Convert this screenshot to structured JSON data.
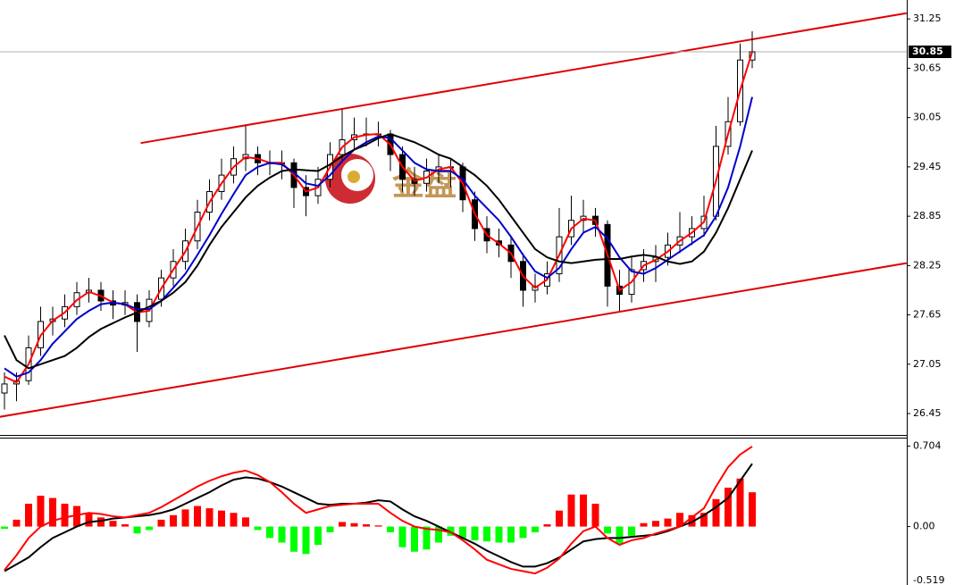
{
  "chart_data": {
    "type": "candlestick",
    "watermark": "金盘",
    "ylim": [
      26.19,
      31.48
    ],
    "yticks": [
      31.25,
      30.65,
      30.05,
      29.45,
      28.85,
      28.25,
      27.65,
      27.05,
      26.45
    ],
    "last_price": 30.85,
    "candles": [
      [
        26.7,
        26.95,
        26.5,
        26.81
      ],
      [
        26.81,
        26.95,
        26.6,
        26.85
      ],
      [
        26.85,
        27.4,
        26.8,
        27.25
      ],
      [
        27.25,
        27.75,
        27.15,
        27.57
      ],
      [
        27.57,
        27.75,
        27.4,
        27.6
      ],
      [
        27.6,
        27.9,
        27.5,
        27.75
      ],
      [
        27.75,
        28.05,
        27.65,
        27.92
      ],
      [
        27.92,
        28.1,
        27.8,
        27.95
      ],
      [
        27.95,
        28.05,
        27.7,
        27.82
      ],
      [
        27.82,
        27.95,
        27.6,
        27.77
      ],
      [
        27.77,
        27.95,
        27.65,
        27.8
      ],
      [
        27.8,
        27.9,
        27.2,
        27.57
      ],
      [
        27.57,
        27.95,
        27.5,
        27.84
      ],
      [
        27.84,
        28.2,
        27.75,
        28.1
      ],
      [
        28.1,
        28.45,
        28.0,
        28.3
      ],
      [
        28.3,
        28.7,
        28.2,
        28.55
      ],
      [
        28.55,
        29.05,
        28.45,
        28.9
      ],
      [
        28.9,
        29.3,
        28.8,
        29.15
      ],
      [
        29.15,
        29.55,
        29.05,
        29.35
      ],
      [
        29.35,
        29.7,
        29.25,
        29.55
      ],
      [
        29.55,
        29.95,
        29.4,
        29.6
      ],
      [
        29.6,
        29.7,
        29.35,
        29.5
      ],
      [
        29.5,
        29.65,
        29.35,
        29.5
      ],
      [
        29.5,
        29.65,
        29.3,
        29.5
      ],
      [
        29.5,
        29.55,
        28.95,
        29.2
      ],
      [
        29.2,
        29.35,
        28.85,
        29.1
      ],
      [
        29.1,
        29.45,
        29.0,
        29.3
      ],
      [
        29.3,
        29.75,
        29.2,
        29.6
      ],
      [
        29.6,
        30.15,
        29.5,
        29.78
      ],
      [
        29.78,
        30.05,
        29.65,
        29.84
      ],
      [
        29.84,
        30.05,
        29.7,
        29.85
      ],
      [
        29.85,
        30.0,
        29.7,
        29.85
      ],
      [
        29.85,
        29.9,
        29.4,
        29.6
      ],
      [
        29.6,
        29.7,
        29.15,
        29.3
      ],
      [
        29.3,
        29.45,
        29.1,
        29.25
      ],
      [
        29.25,
        29.55,
        29.15,
        29.4
      ],
      [
        29.4,
        29.6,
        29.25,
        29.45
      ],
      [
        29.45,
        29.55,
        29.2,
        29.45
      ],
      [
        29.45,
        29.5,
        28.9,
        29.05
      ],
      [
        29.05,
        29.15,
        28.55,
        28.7
      ],
      [
        28.7,
        28.85,
        28.4,
        28.55
      ],
      [
        28.55,
        28.7,
        28.35,
        28.5
      ],
      [
        28.5,
        28.6,
        28.1,
        28.3
      ],
      [
        28.3,
        28.4,
        27.75,
        27.95
      ],
      [
        27.95,
        28.15,
        27.8,
        28.0
      ],
      [
        28.0,
        28.3,
        27.9,
        28.15
      ],
      [
        28.15,
        28.95,
        28.05,
        28.6
      ],
      [
        28.6,
        29.1,
        28.5,
        28.8
      ],
      [
        28.8,
        29.05,
        28.65,
        28.85
      ],
      [
        28.85,
        28.95,
        28.6,
        28.75
      ],
      [
        28.75,
        28.8,
        27.75,
        28.0
      ],
      [
        28.0,
        28.2,
        27.7,
        27.9
      ],
      [
        27.9,
        28.35,
        27.8,
        28.2
      ],
      [
        28.2,
        28.45,
        28.05,
        28.3
      ],
      [
        28.3,
        28.5,
        28.05,
        28.35
      ],
      [
        28.35,
        28.65,
        28.25,
        28.5
      ],
      [
        28.5,
        28.9,
        28.4,
        28.6
      ],
      [
        28.6,
        28.85,
        28.5,
        28.7
      ],
      [
        28.7,
        29.1,
        28.6,
        28.85
      ],
      [
        28.85,
        29.95,
        28.8,
        29.7
      ],
      [
        29.7,
        30.3,
        29.6,
        30.0
      ],
      [
        30.0,
        30.95,
        29.95,
        30.75
      ],
      [
        30.75,
        31.1,
        30.65,
        30.85
      ]
    ],
    "moving_averages": [
      {
        "color": "#ff0000",
        "values": [
          26.9,
          26.83,
          27.05,
          27.4,
          27.58,
          27.68,
          27.83,
          27.93,
          27.88,
          27.8,
          27.78,
          27.68,
          27.7,
          27.97,
          28.2,
          28.42,
          28.72,
          29.02,
          29.25,
          29.45,
          29.57,
          29.55,
          29.5,
          29.5,
          29.35,
          29.15,
          29.2,
          29.45,
          29.69,
          29.81,
          29.84,
          29.85,
          29.72,
          29.45,
          29.28,
          29.32,
          29.42,
          29.45,
          29.25,
          28.88,
          28.62,
          28.52,
          28.4,
          28.12,
          27.98,
          28.08,
          28.38,
          28.7,
          28.82,
          28.8,
          28.38,
          27.95,
          28.05,
          28.25,
          28.32,
          28.42,
          28.55,
          28.65,
          28.78,
          29.28,
          29.85,
          30.38,
          30.85
        ]
      },
      {
        "color": "#0000cc",
        "values": [
          27.0,
          26.9,
          26.95,
          27.1,
          27.3,
          27.45,
          27.6,
          27.7,
          27.78,
          27.8,
          27.78,
          27.72,
          27.72,
          27.82,
          27.98,
          28.15,
          28.38,
          28.62,
          28.88,
          29.12,
          29.35,
          29.45,
          29.5,
          29.48,
          29.38,
          29.25,
          29.22,
          29.35,
          29.52,
          29.66,
          29.75,
          29.82,
          29.8,
          29.65,
          29.5,
          29.42,
          29.4,
          29.4,
          29.3,
          29.1,
          28.95,
          28.8,
          28.6,
          28.38,
          28.18,
          28.1,
          28.22,
          28.45,
          28.65,
          28.72,
          28.58,
          28.35,
          28.18,
          28.15,
          28.22,
          28.32,
          28.42,
          28.52,
          28.62,
          28.85,
          29.2,
          29.7,
          30.3
        ]
      },
      {
        "color": "#000000",
        "values": [
          27.4,
          27.1,
          27.0,
          27.05,
          27.1,
          27.15,
          27.25,
          27.38,
          27.48,
          27.55,
          27.62,
          27.68,
          27.75,
          27.82,
          27.92,
          28.05,
          28.25,
          28.5,
          28.72,
          28.9,
          29.08,
          29.22,
          29.32,
          29.4,
          29.42,
          29.41,
          29.4,
          29.48,
          29.58,
          29.66,
          29.72,
          29.8,
          29.85,
          29.8,
          29.75,
          29.68,
          29.6,
          29.55,
          29.45,
          29.35,
          29.22,
          29.05,
          28.85,
          28.65,
          28.45,
          28.35,
          28.3,
          28.28,
          28.3,
          28.32,
          28.33,
          28.33,
          28.36,
          28.38,
          28.36,
          28.3,
          28.27,
          28.3,
          28.42,
          28.65,
          28.95,
          29.3,
          29.65
        ]
      }
    ],
    "trendlines": [
      {
        "color": "#e00000",
        "x": [
          11.3,
          74.8
        ],
        "values": [
          29.74,
          31.32
        ]
      },
      {
        "color": "#e00000",
        "x": [
          -0.4,
          74.8
        ],
        "values": [
          26.41,
          28.28
        ]
      }
    ],
    "macd": {
      "ylim": [
        -0.55,
        0.77
      ],
      "yticks": [
        0.704,
        {
          "value": 0,
          "label": "0.00"
        },
        {
          "value": -0.519,
          "label": "-0.519"
        }
      ],
      "up_color": "#ff0000",
      "down_color": "#00ff00",
      "histogram": [
        -0.02,
        0.06,
        0.2,
        0.27,
        0.25,
        0.2,
        0.18,
        0.12,
        0.08,
        0.05,
        0.02,
        -0.06,
        -0.03,
        0.06,
        0.1,
        0.15,
        0.18,
        0.16,
        0.14,
        0.12,
        0.08,
        -0.03,
        -0.1,
        -0.14,
        -0.22,
        -0.24,
        -0.16,
        -0.05,
        0.04,
        0.03,
        0.02,
        0.01,
        -0.05,
        -0.18,
        -0.22,
        -0.2,
        -0.14,
        -0.08,
        -0.1,
        -0.12,
        -0.13,
        -0.14,
        -0.14,
        -0.1,
        -0.05,
        0.02,
        0.14,
        0.28,
        0.28,
        0.2,
        -0.06,
        -0.15,
        -0.08,
        0.03,
        0.05,
        0.07,
        0.12,
        0.1,
        0.12,
        0.24,
        0.34,
        0.42,
        0.3
      ],
      "lines": [
        {
          "color": "#000000",
          "values": [
            -0.39,
            -0.33,
            -0.27,
            -0.18,
            -0.1,
            -0.05,
            0.0,
            0.04,
            0.05,
            0.07,
            0.08,
            0.09,
            0.1,
            0.12,
            0.15,
            0.2,
            0.25,
            0.3,
            0.36,
            0.41,
            0.43,
            0.42,
            0.39,
            0.35,
            0.3,
            0.25,
            0.2,
            0.19,
            0.2,
            0.2,
            0.21,
            0.23,
            0.22,
            0.15,
            0.09,
            0.05,
            0.0,
            -0.05,
            -0.1,
            -0.15,
            -0.21,
            -0.26,
            -0.31,
            -0.35,
            -0.35,
            -0.32,
            -0.27,
            -0.2,
            -0.13,
            -0.11,
            -0.1,
            -0.1,
            -0.09,
            -0.08,
            -0.07,
            -0.04,
            0.0,
            0.04,
            0.1,
            0.17,
            0.25,
            0.4,
            0.55
          ]
        },
        {
          "color": "#ff0000",
          "values": [
            -0.38,
            -0.25,
            -0.1,
            0.0,
            0.05,
            0.08,
            0.1,
            0.12,
            0.11,
            0.09,
            0.08,
            0.1,
            0.12,
            0.17,
            0.23,
            0.29,
            0.35,
            0.4,
            0.44,
            0.47,
            0.49,
            0.45,
            0.39,
            0.3,
            0.2,
            0.12,
            0.15,
            0.18,
            0.19,
            0.2,
            0.2,
            0.2,
            0.12,
            0.05,
            0.0,
            -0.02,
            -0.03,
            -0.05,
            -0.12,
            -0.2,
            -0.29,
            -0.33,
            -0.37,
            -0.39,
            -0.41,
            -0.36,
            -0.28,
            -0.15,
            -0.04,
            0.0,
            -0.1,
            -0.16,
            -0.12,
            -0.1,
            -0.06,
            -0.03,
            0.0,
            0.08,
            0.16,
            0.35,
            0.52,
            0.63,
            0.7
          ]
        }
      ]
    }
  }
}
